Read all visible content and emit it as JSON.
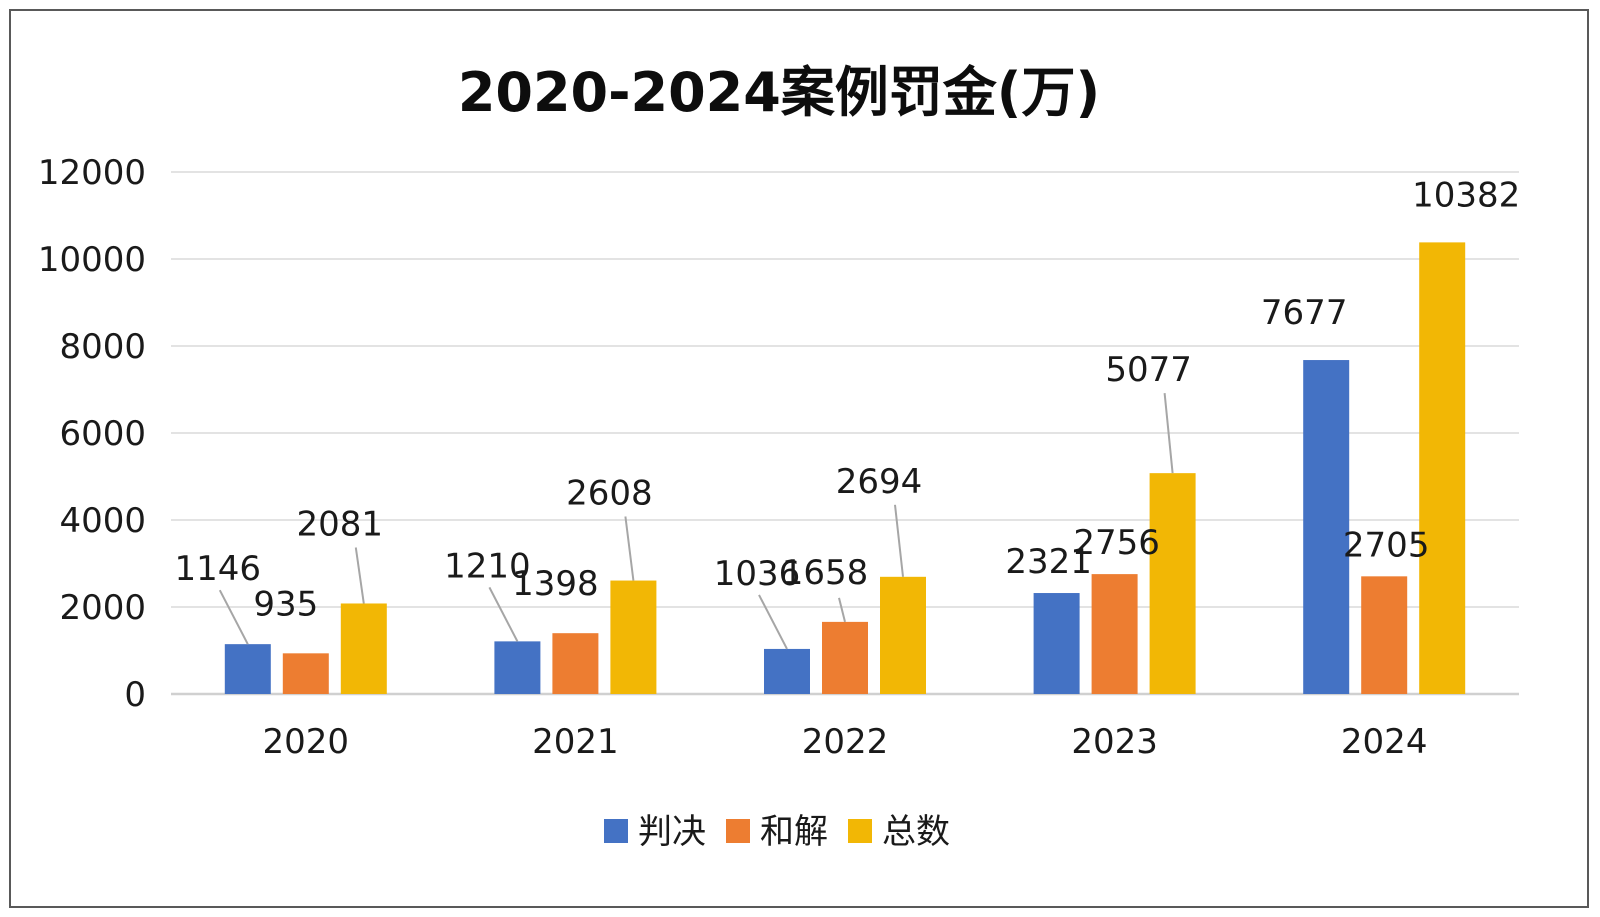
{
  "chart_data": {
    "type": "bar",
    "title": "2020-2024案例罚金(万)",
    "xlabel": "",
    "ylabel": "",
    "categories": [
      "2020",
      "2021",
      "2022",
      "2023",
      "2024"
    ],
    "series": [
      {
        "name": "判决",
        "color": "#4472C4",
        "values": [
          1146,
          1210,
          1036,
          2321,
          7677
        ]
      },
      {
        "name": "和解",
        "color": "#ED7D31",
        "values": [
          935,
          1398,
          1658,
          2756,
          2705
        ]
      },
      {
        "name": "总数",
        "color": "#F2B705",
        "values": [
          2081,
          2608,
          2694,
          5077,
          10382
        ]
      }
    ],
    "ylim": [
      0,
      12000
    ],
    "yticks": [
      0,
      2000,
      4000,
      6000,
      8000,
      10000,
      12000
    ],
    "grid": true,
    "legend": "bottom-center",
    "data_labels": true
  }
}
